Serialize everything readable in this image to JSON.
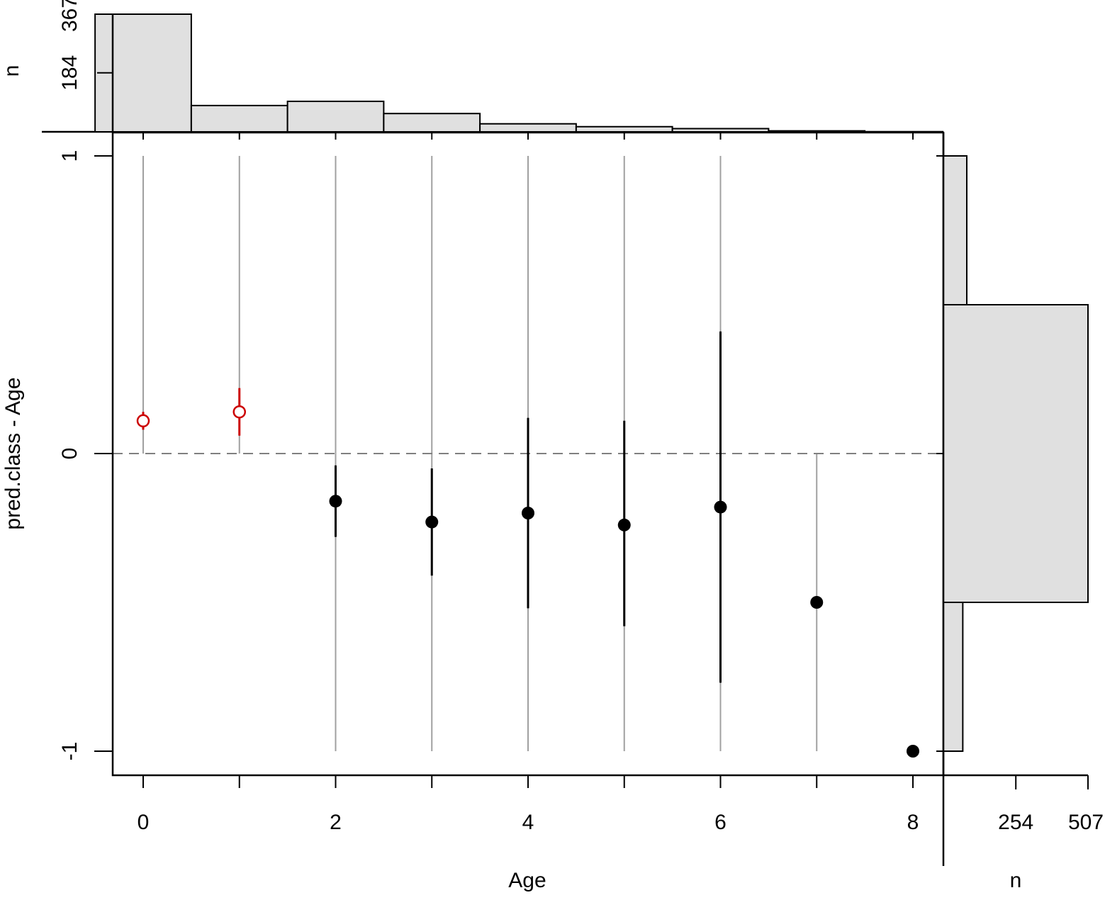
{
  "colors": {
    "point_below_zero": "#000000",
    "point_above_zero": "#cc0000",
    "range_line": "#a0a0a0",
    "zero_line": "#808080",
    "hist_fill": "#e0e0e0",
    "hist_stroke": "#000000"
  },
  "chart_data": {
    "type": "scatter",
    "title": "",
    "xlabel": "Age",
    "ylabel": "pred.class - Age",
    "xlim": [
      -0.33,
      8.33
    ],
    "ylim": [
      -1.08,
      1.08
    ],
    "x_ticks": [
      0,
      2,
      4,
      6,
      8
    ],
    "x_minor_ticks": [
      1,
      3,
      5,
      7
    ],
    "y_ticks": [
      -1,
      0,
      1
    ],
    "reference_line": {
      "y": 0,
      "style": "dashed"
    },
    "points": [
      {
        "x": 0,
        "mean": 0.11,
        "ci": [
          0.08,
          0.14
        ],
        "range": [
          0,
          1
        ],
        "marker": "open-circle",
        "color": "#cc0000"
      },
      {
        "x": 1,
        "mean": 0.14,
        "ci": [
          0.06,
          0.22
        ],
        "range": [
          0,
          1
        ],
        "marker": "open-circle",
        "color": "#cc0000"
      },
      {
        "x": 2,
        "mean": -0.16,
        "ci": [
          -0.04,
          -0.28
        ],
        "range": [
          -1,
          1
        ],
        "marker": "filled-circle",
        "color": "#000000"
      },
      {
        "x": 3,
        "mean": -0.23,
        "ci": [
          -0.05,
          -0.41
        ],
        "range": [
          -1,
          1
        ],
        "marker": "filled-circle",
        "color": "#000000"
      },
      {
        "x": 4,
        "mean": -0.2,
        "ci": [
          0.12,
          -0.52
        ],
        "range": [
          -1,
          1
        ],
        "marker": "filled-circle",
        "color": "#000000"
      },
      {
        "x": 5,
        "mean": -0.24,
        "ci": [
          0.11,
          -0.58
        ],
        "range": [
          -1,
          1
        ],
        "marker": "filled-circle",
        "color": "#000000"
      },
      {
        "x": 6,
        "mean": -0.18,
        "ci": [
          0.41,
          -0.77
        ],
        "range": [
          -1,
          1
        ],
        "marker": "filled-circle",
        "color": "#000000"
      },
      {
        "x": 7,
        "mean": -0.5,
        "ci": null,
        "range": [
          -1,
          0
        ],
        "marker": "filled-circle",
        "color": "#000000"
      },
      {
        "x": 8,
        "mean": -1,
        "ci": null,
        "range": null,
        "marker": "filled-circle",
        "color": "#000000"
      }
    ],
    "top_histogram": {
      "ylabel": "n",
      "y_ticks": [
        184,
        367
      ],
      "ymax": 367,
      "bins": [
        {
          "from": -0.5,
          "to": 0.5,
          "count": 367
        },
        {
          "from": 0.5,
          "to": 1.5,
          "count": 82
        },
        {
          "from": 1.5,
          "to": 2.5,
          "count": 95
        },
        {
          "from": 2.5,
          "to": 3.5,
          "count": 57
        },
        {
          "from": 3.5,
          "to": 4.5,
          "count": 25
        },
        {
          "from": 4.5,
          "to": 5.5,
          "count": 16
        },
        {
          "from": 5.5,
          "to": 6.5,
          "count": 10
        },
        {
          "from": 6.5,
          "to": 7.5,
          "count": 3
        }
      ]
    },
    "right_histogram": {
      "xlabel": "n",
      "x_ticks": [
        254,
        507
      ],
      "xmax": 507,
      "bins": [
        {
          "from": 0.5,
          "to": 1.0,
          "count": 82
        },
        {
          "from": -0.5,
          "to": 0.5,
          "count": 507
        },
        {
          "from": -1.0,
          "to": -0.5,
          "count": 68
        }
      ]
    }
  }
}
